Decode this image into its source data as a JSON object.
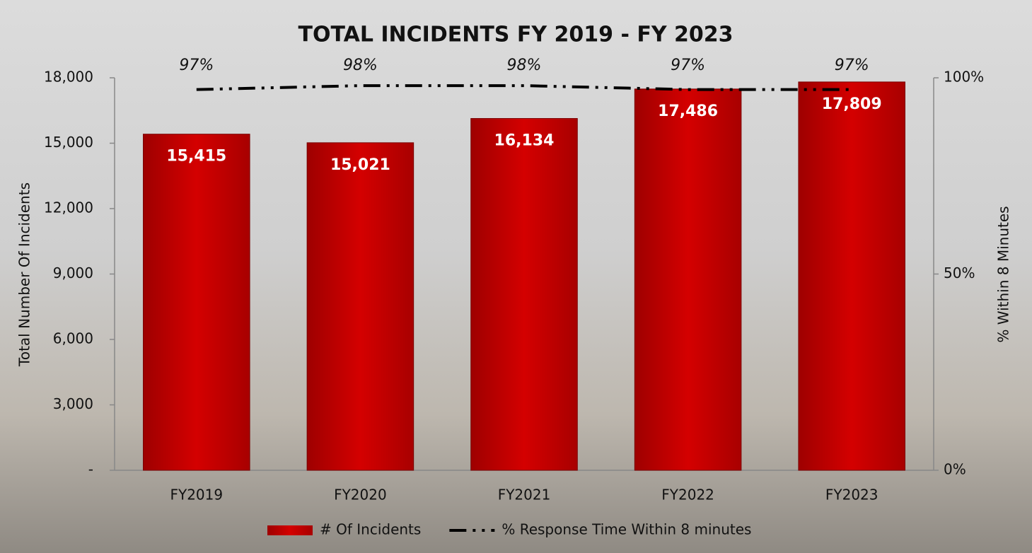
{
  "chart_data": {
    "type": "bar",
    "title": "TOTAL INCIDENTS FY 2019 - FY 2023",
    "y_label": "Total Number Of Incidents",
    "y2_label": "% Within 8 Minutes",
    "categories": [
      "FY2019",
      "FY2020",
      "FY2021",
      "FY2022",
      "FY2023"
    ],
    "series": [
      {
        "name": "# Of Incidents",
        "type": "bar",
        "color": "#cc0000",
        "values": [
          15415,
          15021,
          16134,
          17486,
          17809
        ],
        "value_labels": [
          "15,415",
          "15,021",
          "16,134",
          "17,486",
          "17,809"
        ]
      },
      {
        "name": "% Response Time Within 8 minutes",
        "type": "line",
        "axis": "y2",
        "color": "#000000",
        "values": [
          97,
          98,
          98,
          97,
          97
        ],
        "value_labels": [
          "97%",
          "98%",
          "98%",
          "97%",
          "97%"
        ]
      }
    ],
    "ylim": [
      0,
      18000
    ],
    "yticks": [
      {
        "value": 0,
        "label": "-"
      },
      {
        "value": 3000,
        "label": "3,000"
      },
      {
        "value": 6000,
        "label": "6,000"
      },
      {
        "value": 9000,
        "label": "9,000"
      },
      {
        "value": 12000,
        "label": "12,000"
      },
      {
        "value": 15000,
        "label": "15,000"
      },
      {
        "value": 18000,
        "label": "18,000"
      }
    ],
    "y2lim": [
      0,
      100
    ],
    "y2ticks": [
      {
        "value": 0,
        "label": "0%"
      },
      {
        "value": 50,
        "label": "50%"
      },
      {
        "value": 100,
        "label": "100%"
      }
    ],
    "grid": false,
    "legend": "bottom"
  }
}
